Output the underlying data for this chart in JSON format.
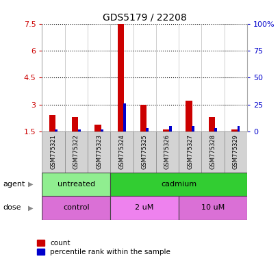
{
  "title": "GDS5179 / 22208",
  "samples": [
    "GSM775321",
    "GSM775322",
    "GSM775323",
    "GSM775324",
    "GSM775325",
    "GSM775326",
    "GSM775327",
    "GSM775328",
    "GSM775329"
  ],
  "count_values": [
    2.4,
    2.3,
    1.9,
    7.5,
    3.0,
    1.6,
    3.2,
    2.3,
    1.6
  ],
  "percentile_values": [
    2.0,
    2.0,
    2.0,
    26.0,
    3.0,
    5.0,
    5.0,
    3.0,
    5.0
  ],
  "ylim_left": [
    1.5,
    7.5
  ],
  "ylim_right": [
    0,
    100
  ],
  "yticks_left": [
    1.5,
    3.0,
    4.5,
    6.0,
    7.5
  ],
  "ytick_labels_left": [
    "1.5",
    "3",
    "4.5",
    "6",
    "7.5"
  ],
  "yticks_right": [
    0,
    25,
    50,
    75,
    100
  ],
  "ytick_labels_right": [
    "0",
    "25",
    "50",
    "75",
    "100%"
  ],
  "count_bar_width": 0.28,
  "percentile_bar_width": 0.12,
  "count_color": "#cc0000",
  "percentile_color": "#0000cc",
  "agent_groups": [
    {
      "label": "untreated",
      "start": 0,
      "end": 3,
      "color": "#90ee90"
    },
    {
      "label": "cadmium",
      "start": 3,
      "end": 9,
      "color": "#32cd32"
    }
  ],
  "dose_groups": [
    {
      "label": "control",
      "start": 0,
      "end": 3,
      "color": "#da70d6"
    },
    {
      "label": "2 uM",
      "start": 3,
      "end": 6,
      "color": "#ee82ee"
    },
    {
      "label": "10 uM",
      "start": 6,
      "end": 9,
      "color": "#da70d6"
    }
  ],
  "agent_label": "agent",
  "dose_label": "dose",
  "legend_count": "count",
  "legend_percentile": "percentile rank within the sample",
  "background_color": "#ffffff",
  "plot_bg_color": "#ffffff",
  "tick_label_color_left": "#cc0000",
  "tick_label_color_right": "#0000cc",
  "base_value": 1.5,
  "separator_color": "#bbbbbb",
  "sample_box_color": "#d3d3d3"
}
